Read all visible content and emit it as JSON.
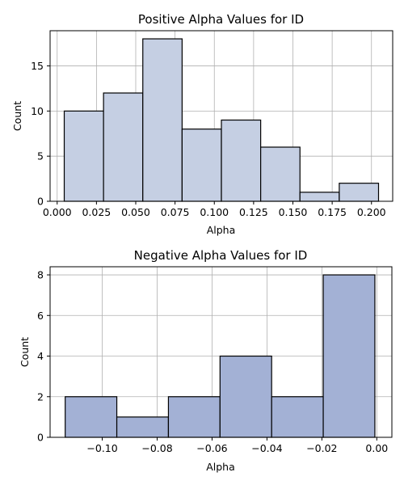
{
  "chart_data": [
    {
      "type": "bar",
      "subtype": "histogram",
      "title": "Positive Alpha Values for ID",
      "xlabel": "Alpha",
      "ylabel": "Count",
      "color": "#c5cfe3",
      "edge_color": "#000000",
      "grid": true,
      "xlim": [
        -0.0045,
        0.2135
      ],
      "ylim": [
        0,
        18.9
      ],
      "xticks": [
        0.0,
        0.025,
        0.05,
        0.075,
        0.1,
        0.125,
        0.15,
        0.175,
        0.2
      ],
      "xtick_labels": [
        "0.000",
        "0.025",
        "0.050",
        "0.075",
        "0.100",
        "0.125",
        "0.150",
        "0.175",
        "0.200"
      ],
      "yticks": [
        0,
        5,
        10,
        15
      ],
      "ytick_labels": [
        "0",
        "5",
        "10",
        "15"
      ],
      "bins": [
        {
          "start": 0.0045,
          "end": 0.0295,
          "count": 10
        },
        {
          "start": 0.0295,
          "end": 0.0545,
          "count": 12
        },
        {
          "start": 0.0545,
          "end": 0.0795,
          "count": 18
        },
        {
          "start": 0.0795,
          "end": 0.1045,
          "count": 8
        },
        {
          "start": 0.1045,
          "end": 0.1295,
          "count": 9
        },
        {
          "start": 0.1295,
          "end": 0.1545,
          "count": 6
        },
        {
          "start": 0.1545,
          "end": 0.1795,
          "count": 1
        },
        {
          "start": 0.1795,
          "end": 0.2045,
          "count": 2
        }
      ]
    },
    {
      "type": "bar",
      "subtype": "histogram",
      "title": "Negative Alpha Values for ID",
      "xlabel": "Alpha",
      "ylabel": "Count",
      "color": "#a3b1d5",
      "edge_color": "#000000",
      "grid": true,
      "xlim": [
        -0.119,
        0.0055
      ],
      "ylim": [
        0,
        8.4
      ],
      "xticks": [
        -0.1,
        -0.08,
        -0.06,
        -0.04,
        -0.02,
        0.0
      ],
      "xtick_labels": [
        "−0.10",
        "−0.08",
        "−0.06",
        "−0.04",
        "−0.02",
        "0.00"
      ],
      "yticks": [
        0,
        2,
        4,
        6,
        8
      ],
      "ytick_labels": [
        "0",
        "2",
        "4",
        "6",
        "8"
      ],
      "bins": [
        {
          "start": -0.1135,
          "end": -0.0947,
          "count": 2
        },
        {
          "start": -0.0947,
          "end": -0.0759,
          "count": 1
        },
        {
          "start": -0.0759,
          "end": -0.0571,
          "count": 2
        },
        {
          "start": -0.0571,
          "end": -0.0383,
          "count": 4
        },
        {
          "start": -0.0383,
          "end": -0.0195,
          "count": 2
        },
        {
          "start": -0.0195,
          "end": -0.0007,
          "count": 8
        }
      ]
    }
  ]
}
